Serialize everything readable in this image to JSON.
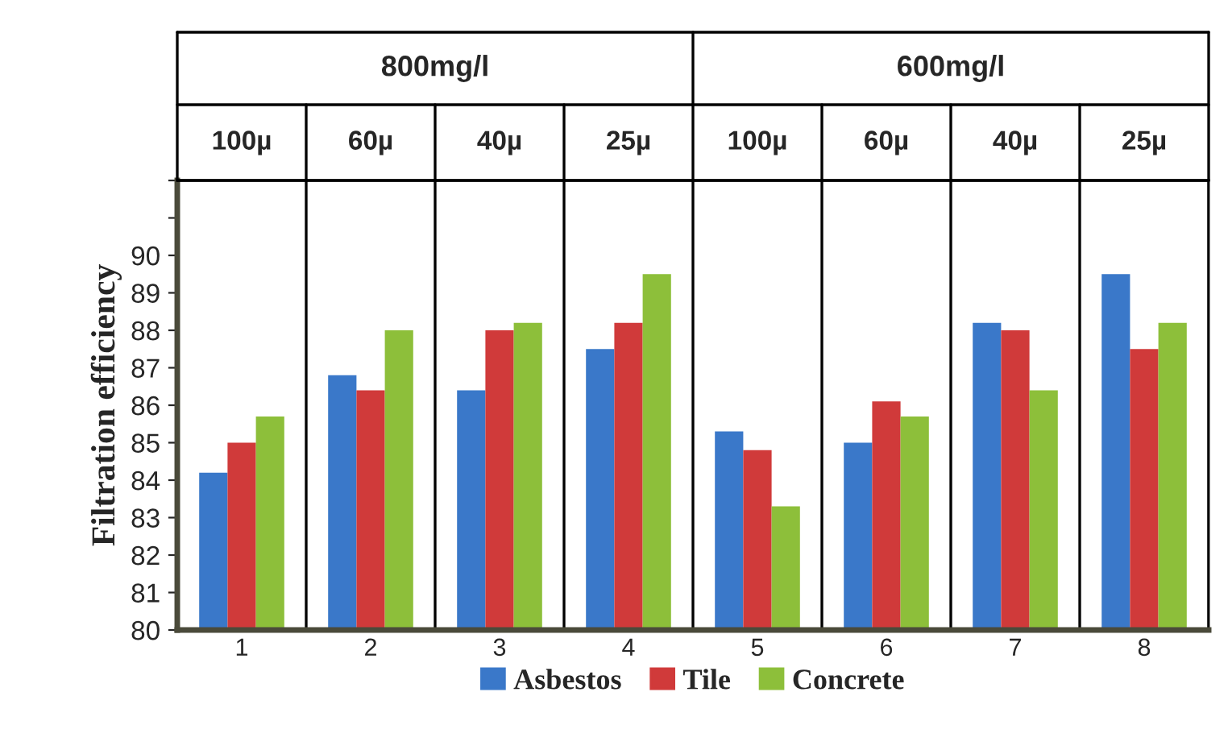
{
  "chart_data": {
    "type": "bar",
    "ylabel": "Filtration efficiency",
    "categories": [
      "1",
      "2",
      "3",
      "4",
      "5",
      "6",
      "7",
      "8"
    ],
    "series": [
      {
        "name": "Asbestos",
        "color": "#3a78c9",
        "values": [
          84.2,
          86.8,
          86.4,
          87.5,
          85.3,
          85.0,
          88.2,
          89.5
        ]
      },
      {
        "name": "Tile",
        "color": "#d03a3a",
        "values": [
          85.0,
          86.4,
          88.0,
          88.2,
          84.8,
          86.1,
          88.0,
          87.5
        ]
      },
      {
        "name": "Concrete",
        "color": "#8dbf3a",
        "values": [
          85.7,
          88.0,
          88.2,
          89.5,
          83.3,
          85.7,
          86.4,
          88.2
        ]
      }
    ],
    "ylim": [
      80,
      92
    ],
    "yticks": [
      80,
      81,
      82,
      83,
      84,
      85,
      86,
      87,
      88,
      89,
      90,
      {
        "value": 91,
        "label": null
      },
      {
        "value": 92,
        "label": null
      }
    ],
    "grid": "x",
    "legend": "bottom",
    "annotations": [
      "800mg/l",
      "600mg/l",
      "100µ",
      "60µ",
      "40µ",
      "25µ",
      "100µ",
      "60µ",
      "40µ",
      "25µ"
    ]
  }
}
